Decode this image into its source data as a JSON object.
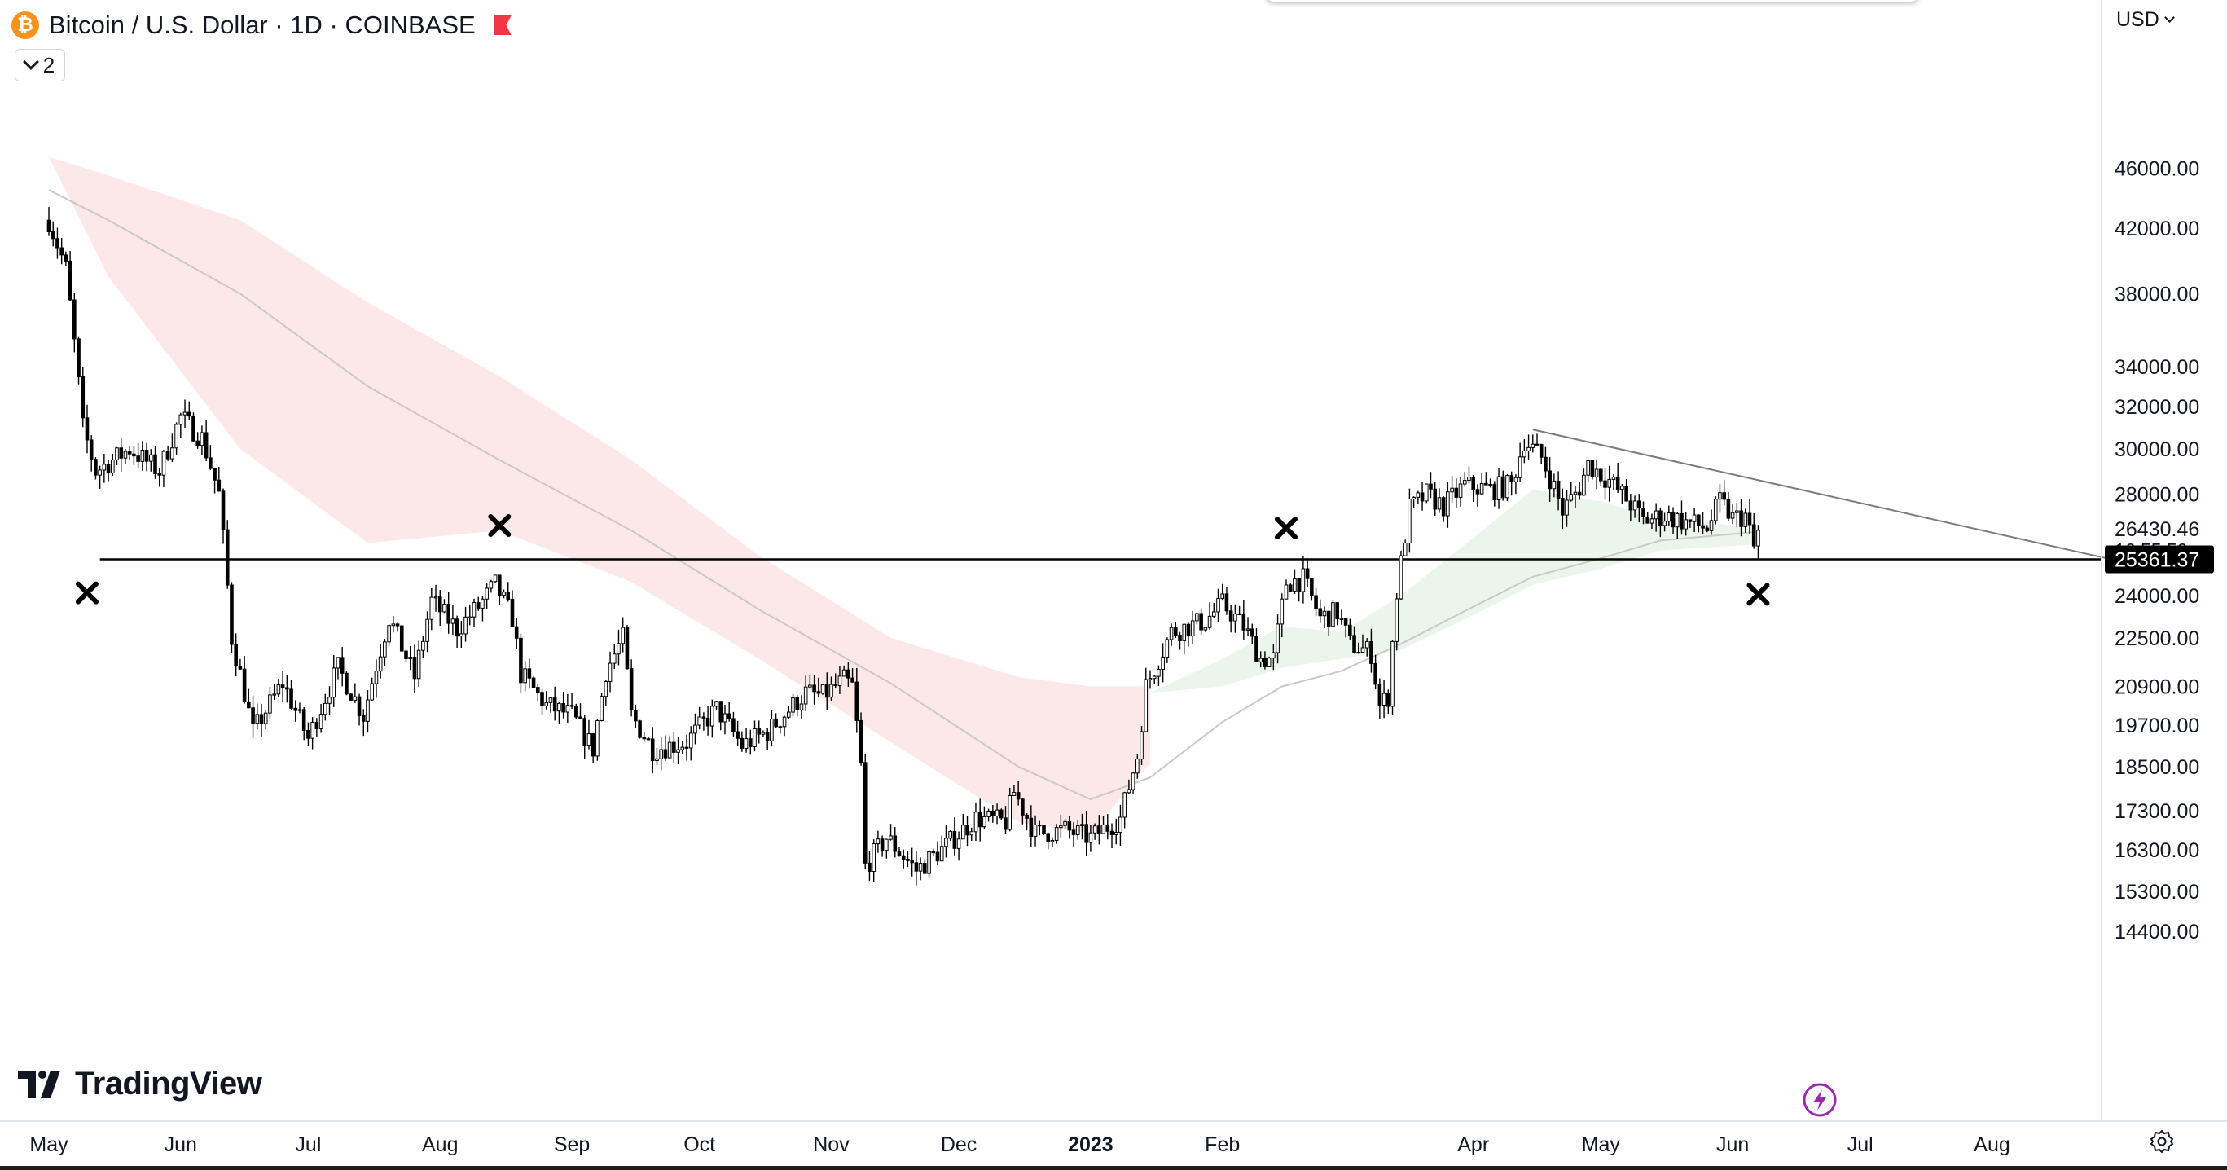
{
  "header": {
    "symbol_title": "Bitcoin / U.S. Dollar · 1D · COINBASE",
    "coin_glyph": "₿",
    "indicator_count": "2"
  },
  "price_scale": {
    "currency": "USD",
    "last_price": "26430.46",
    "countdown": "16:55:50",
    "horizontal_line_label": "25361.37"
  },
  "brand": {
    "logo_text": "TradingView"
  },
  "colors": {
    "candle_body": "#000000",
    "bearish_ribbon": "#fce8e8",
    "bullish_ribbon": "#ecf5ec",
    "moving_average": "#c9c9c9",
    "price_tag_bg": "#000000",
    "bolt_accent": "#9c27b0"
  },
  "chart_data": {
    "type": "candlestick",
    "scale": "log",
    "ylim": [
      14000,
      47500
    ],
    "y_ticks": [
      "46000.00",
      "42000.00",
      "38000.00",
      "34000.00",
      "32000.00",
      "30000.00",
      "28000.00",
      "24000.00",
      "22500.00",
      "20900.00",
      "19700.00",
      "18500.00",
      "17300.00",
      "16300.00",
      "15300.00",
      "14400.00"
    ],
    "x_ticks": [
      "May",
      "Jun",
      "Jul",
      "Aug",
      "Sep",
      "Oct",
      "Nov",
      "Dec",
      "2023",
      "Feb",
      "Apr",
      "May",
      "Jun",
      "Jul",
      "Aug"
    ],
    "x_ticks_bold": [
      "2023"
    ],
    "price_path": [
      [
        "2022-05-01",
        42500
      ],
      [
        "2022-05-05",
        39500
      ],
      [
        "2022-05-09",
        31000
      ],
      [
        "2022-05-12",
        29000
      ],
      [
        "2022-05-20",
        30000
      ],
      [
        "2022-05-27",
        29000
      ],
      [
        "2022-06-01",
        31500
      ],
      [
        "2022-06-06",
        30500
      ],
      [
        "2022-06-10",
        28000
      ],
      [
        "2022-06-13",
        22500
      ],
      [
        "2022-06-18",
        19500
      ],
      [
        "2022-06-25",
        21000
      ],
      [
        "2022-07-01",
        19300
      ],
      [
        "2022-07-08",
        21500
      ],
      [
        "2022-07-14",
        20000
      ],
      [
        "2022-07-20",
        23200
      ],
      [
        "2022-07-26",
        21200
      ],
      [
        "2022-07-30",
        23800
      ],
      [
        "2022-08-05",
        22800
      ],
      [
        "2022-08-10",
        23600
      ],
      [
        "2022-08-14",
        24400
      ],
      [
        "2022-08-18",
        23200
      ],
      [
        "2022-08-20",
        21300
      ],
      [
        "2022-08-26",
        20300
      ],
      [
        "2022-09-01",
        20000
      ],
      [
        "2022-09-06",
        19000
      ],
      [
        "2022-09-09",
        21400
      ],
      [
        "2022-09-13",
        22500
      ],
      [
        "2022-09-15",
        20000
      ],
      [
        "2022-09-20",
        19000
      ],
      [
        "2022-09-24",
        19100
      ],
      [
        "2022-09-28",
        19200
      ],
      [
        "2022-10-05",
        20200
      ],
      [
        "2022-10-11",
        19100
      ],
      [
        "2022-10-17",
        19500
      ],
      [
        "2022-10-26",
        20700
      ],
      [
        "2022-10-30",
        20600
      ],
      [
        "2022-11-04",
        21100
      ],
      [
        "2022-11-06",
        20900
      ],
      [
        "2022-11-08",
        18500
      ],
      [
        "2022-11-09",
        15900
      ],
      [
        "2022-11-14",
        16600
      ],
      [
        "2022-11-21",
        15800
      ],
      [
        "2022-11-28",
        16400
      ],
      [
        "2022-12-05",
        17100
      ],
      [
        "2022-12-12",
        17000
      ],
      [
        "2022-12-14",
        17800
      ],
      [
        "2022-12-19",
        16700
      ],
      [
        "2022-12-26",
        16800
      ],
      [
        "2023-01-01",
        16600
      ],
      [
        "2023-01-08",
        17100
      ],
      [
        "2023-01-12",
        18800
      ],
      [
        "2023-01-14",
        20900
      ],
      [
        "2023-01-20",
        22700
      ],
      [
        "2023-01-28",
        23100
      ],
      [
        "2023-02-01",
        23700
      ],
      [
        "2023-02-06",
        22900
      ],
      [
        "2023-02-10",
        21800
      ],
      [
        "2023-02-13",
        21800
      ],
      [
        "2023-02-16",
        24500
      ],
      [
        "2023-02-20",
        24600
      ],
      [
        "2023-02-24",
        23200
      ],
      [
        "2023-02-28",
        23400
      ],
      [
        "2023-03-03",
        22300
      ],
      [
        "2023-03-08",
        22000
      ],
      [
        "2023-03-10",
        20300
      ],
      [
        "2023-03-12",
        20600
      ],
      [
        "2023-03-14",
        24100
      ],
      [
        "2023-03-17",
        27400
      ],
      [
        "2023-03-21",
        28000
      ],
      [
        "2023-03-25",
        27500
      ],
      [
        "2023-03-30",
        28400
      ],
      [
        "2023-04-05",
        28200
      ],
      [
        "2023-04-10",
        28400
      ],
      [
        "2023-04-13",
        30400
      ],
      [
        "2023-04-17",
        29600
      ],
      [
        "2023-04-20",
        28300
      ],
      [
        "2023-04-22",
        27300
      ],
      [
        "2023-04-26",
        28300
      ],
      [
        "2023-04-28",
        29300
      ],
      [
        "2023-05-03",
        28600
      ],
      [
        "2023-05-08",
        27600
      ],
      [
        "2023-05-11",
        26900
      ],
      [
        "2023-05-16",
        27100
      ],
      [
        "2023-05-22",
        26800
      ],
      [
        "2023-05-26",
        26600
      ],
      [
        "2023-05-29",
        27700
      ],
      [
        "2023-06-01",
        27000
      ],
      [
        "2023-06-04",
        27100
      ],
      [
        "2023-06-06",
        25800
      ],
      [
        "2023-06-07",
        26430
      ]
    ],
    "moving_average": [
      [
        "2022-05-01",
        44500
      ],
      [
        "2022-05-15",
        42500
      ],
      [
        "2022-06-15",
        38000
      ],
      [
        "2022-07-15",
        33000
      ],
      [
        "2022-08-15",
        29500
      ],
      [
        "2022-09-15",
        26500
      ],
      [
        "2022-10-15",
        23500
      ],
      [
        "2022-11-15",
        21000
      ],
      [
        "2022-12-15",
        18500
      ],
      [
        "2023-01-01",
        17600
      ],
      [
        "2023-01-15",
        18200
      ],
      [
        "2023-02-01",
        19800
      ],
      [
        "2023-02-15",
        20900
      ],
      [
        "2023-03-01",
        21400
      ],
      [
        "2023-03-15",
        22300
      ],
      [
        "2023-04-01",
        23600
      ],
      [
        "2023-04-15",
        24700
      ],
      [
        "2023-05-01",
        25400
      ],
      [
        "2023-05-15",
        26100
      ],
      [
        "2023-06-07",
        26450
      ]
    ],
    "ribbon_upper": [
      [
        "2022-05-01",
        46800
      ],
      [
        "2022-05-15",
        45500
      ],
      [
        "2022-06-15",
        42500
      ],
      [
        "2022-07-15",
        37500
      ],
      [
        "2022-08-15",
        33500
      ],
      [
        "2022-09-15",
        29500
      ],
      [
        "2022-10-15",
        25500
      ],
      [
        "2022-11-15",
        22500
      ],
      [
        "2022-12-15",
        21200
      ],
      [
        "2023-01-01",
        20900
      ],
      [
        "2023-01-15",
        20900
      ]
    ],
    "ribbon_lower": [
      [
        "2022-05-01",
        46800
      ],
      [
        "2022-05-15",
        39000
      ],
      [
        "2022-06-15",
        30000
      ],
      [
        "2022-07-15",
        26000
      ],
      [
        "2022-08-15",
        26500
      ],
      [
        "2022-09-15",
        24500
      ],
      [
        "2022-10-15",
        21800
      ],
      [
        "2022-11-15",
        19200
      ],
      [
        "2022-12-15",
        17000
      ],
      [
        "2023-01-01",
        16700
      ],
      [
        "2023-01-15",
        18600
      ]
    ],
    "ribbon_green_upper": [
      [
        "2023-01-15",
        20700
      ],
      [
        "2023-02-01",
        21800
      ],
      [
        "2023-02-15",
        22900
      ],
      [
        "2023-03-01",
        22700
      ],
      [
        "2023-03-15",
        24000
      ],
      [
        "2023-04-01",
        26200
      ],
      [
        "2023-04-15",
        28200
      ],
      [
        "2023-05-01",
        27700
      ],
      [
        "2023-05-15",
        27000
      ],
      [
        "2023-06-07",
        26600
      ]
    ],
    "ribbon_green_lower": [
      [
        "2023-01-15",
        20700
      ],
      [
        "2023-02-01",
        20900
      ],
      [
        "2023-02-15",
        21500
      ],
      [
        "2023-03-01",
        21800
      ],
      [
        "2023-03-15",
        22100
      ],
      [
        "2023-04-01",
        23300
      ],
      [
        "2023-04-15",
        24400
      ],
      [
        "2023-05-01",
        25000
      ],
      [
        "2023-05-15",
        25700
      ],
      [
        "2023-06-07",
        25950
      ]
    ],
    "horizontal_line": {
      "value": 25361.37,
      "start": "2022-05-13"
    },
    "trendline": {
      "start": [
        "2023-04-15",
        30900
      ],
      "end": [
        "2023-08-28",
        25400
      ]
    },
    "x_markers": [
      {
        "date": "2022-05-10",
        "price": 24100
      },
      {
        "date": "2022-08-15",
        "price": 26700
      },
      {
        "date": "2023-02-16",
        "price": 26600
      },
      {
        "date": "2023-06-07",
        "price": 24050
      }
    ]
  }
}
